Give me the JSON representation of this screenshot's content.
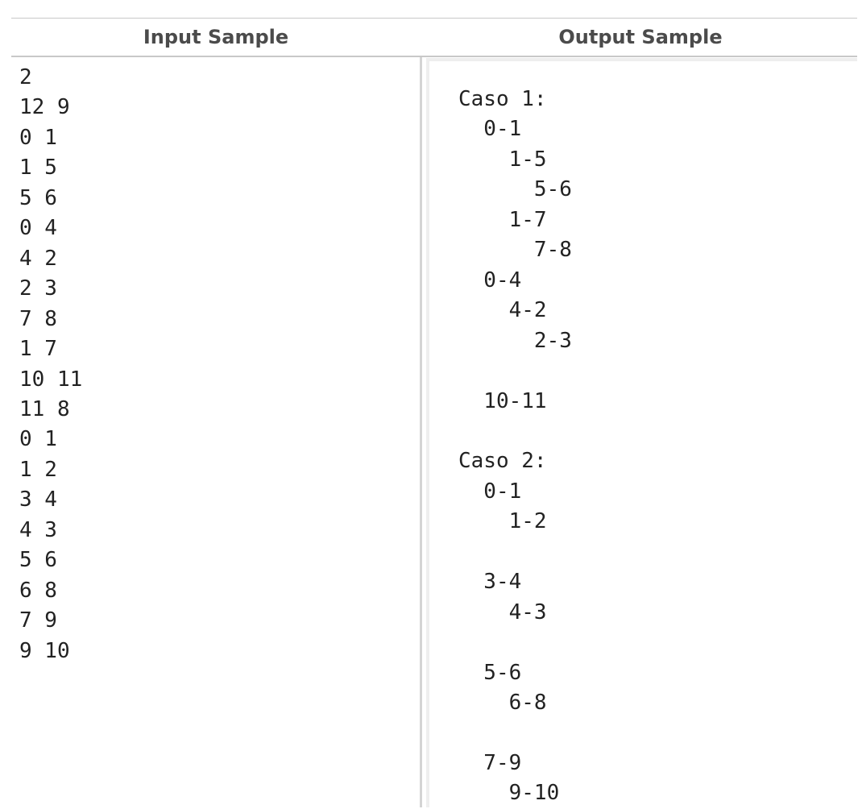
{
  "headers": {
    "input": "Input Sample",
    "output": "Output Sample"
  },
  "input_sample": "2\n12 9\n0 1\n1 5\n5 6\n0 4\n4 2\n2 3\n7 8\n1 7\n10 11\n11 8\n0 1\n1 2\n3 4\n4 3\n5 6\n6 8\n7 9\n9 10",
  "output_sample": "Caso 1:\n  0-1\n    1-5\n      5-6\n    1-7\n      7-8\n  0-4\n    4-2\n      2-3\n\n  10-11\n\nCaso 2:\n  0-1\n    1-2\n\n  3-4\n    4-3\n\n  5-6\n    6-8\n\n  7-9\n    9-10"
}
